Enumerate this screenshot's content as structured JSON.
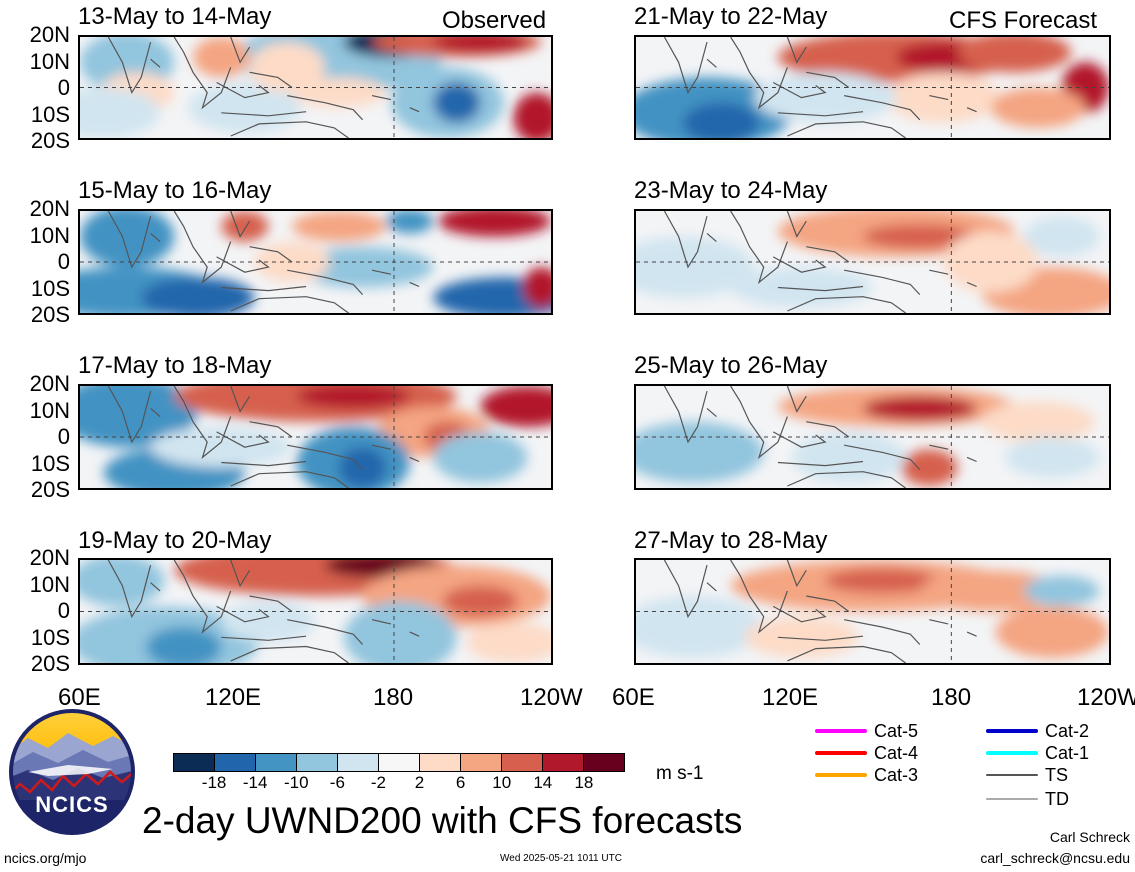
{
  "panels": {
    "left": [
      {
        "title": "13-May to 14-May",
        "source": "Observed"
      },
      {
        "title": "15-May to 16-May",
        "source": ""
      },
      {
        "title": "17-May to 18-May",
        "source": ""
      },
      {
        "title": "19-May to 20-May",
        "source": ""
      }
    ],
    "right": [
      {
        "title": "21-May to 22-May",
        "source": "CFS Forecast"
      },
      {
        "title": "23-May to 24-May",
        "source": ""
      },
      {
        "title": "25-May to 26-May",
        "source": ""
      },
      {
        "title": "27-May to 28-May",
        "source": ""
      }
    ]
  },
  "lat_labels": [
    "20N",
    "10N",
    "0",
    "10S",
    "20S"
  ],
  "lon_labels": [
    "60E",
    "120E",
    "180",
    "120W"
  ],
  "colorbar": {
    "ticks": [
      "-18",
      "-14",
      "-10",
      "-6",
      "-2",
      "2",
      "6",
      "10",
      "14",
      "18"
    ],
    "units": "m s-1",
    "colors": [
      "#0b2c55",
      "#2166ac",
      "#4393c3",
      "#92c5de",
      "#d1e5f0",
      "#f7f7f7",
      "#fddbc7",
      "#f4a582",
      "#d6604d",
      "#b2182b",
      "#67001f"
    ]
  },
  "legend": [
    {
      "label": "Cat-5",
      "color": "#ff00ff"
    },
    {
      "label": "Cat-4",
      "color": "#ff0000"
    },
    {
      "label": "Cat-3",
      "color": "#ffa500"
    },
    {
      "label": "Cat-2",
      "color": "#0000cc"
    },
    {
      "label": "Cat-1",
      "color": "#00ffff"
    },
    {
      "label": "TS",
      "color": "#555555"
    },
    {
      "label": "TD",
      "color": "#aaaaaa"
    }
  ],
  "logo_text": "NCICS",
  "main_title": "2-day UWND200 with CFS forecasts",
  "footer": {
    "url": "ncics.org/mjo",
    "timestamp": "Wed 2025-05-21 1011 UTC",
    "author": "Carl Schreck",
    "email": "carl_schreck@ncsu.edu"
  }
}
